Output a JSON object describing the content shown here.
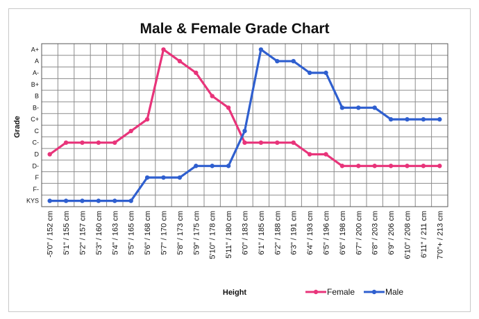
{
  "chart_data": {
    "type": "line",
    "title": "Male & Female Grade Chart",
    "xlabel": "Height",
    "ylabel": "Grade",
    "grid": true,
    "legend_position": "bottom-right",
    "y_categories": [
      "KYS",
      "F-",
      "F",
      "D-",
      "D",
      "C-",
      "C",
      "C+",
      "B-",
      "B",
      "B+",
      "A-",
      "A",
      "A+"
    ],
    "categories": [
      "-5'0\" / 152 cm",
      "5'1\" / 155 cm",
      "5'2\" / 157 cm",
      "5'3\" / 160 cm",
      "5'4\" / 163 cm",
      "5'5\" / 165 cm",
      "5'6\" / 168 cm",
      "5'7\" / 170 cm",
      "5'8\" / 173 cm",
      "5'9\" / 175 cm",
      "5'10\" / 178 cm",
      "5'11\" / 180 cm",
      "6'0\" / 183 cm",
      "6'1\" / 185 cm",
      "6'2\" / 188 cm",
      "6'3\" / 191 cm",
      "6'4\" / 193 cm",
      "6'5\" / 196 cm",
      "6'6\" / 198 cm",
      "6'7\" / 200 cm",
      "6'8\" / 203 cm",
      "6'9\" / 206 cm",
      "6'10\" / 208 cm",
      "6'11\" / 211 cm",
      "7'0\"+ / 213 cm"
    ],
    "series": [
      {
        "name": "Female",
        "color": "#e8347a",
        "values": [
          "D",
          "C-",
          "C-",
          "C-",
          "C-",
          "C",
          "C+",
          "A+",
          "A",
          "A-",
          "B",
          "B-",
          "C-",
          "C-",
          "C-",
          "C-",
          "D",
          "D",
          "D-",
          "D-",
          "D-",
          "D-",
          "D-",
          "D-",
          "D-"
        ]
      },
      {
        "name": "Male",
        "color": "#2f5fcf",
        "values": [
          "KYS",
          "KYS",
          "KYS",
          "KYS",
          "KYS",
          "KYS",
          "F",
          "F",
          "F",
          "D-",
          "D-",
          "D-",
          "C",
          "A+",
          "A",
          "A",
          "A-",
          "A-",
          "B-",
          "B-",
          "B-",
          "C+",
          "C+",
          "C+",
          "C+"
        ]
      }
    ]
  }
}
